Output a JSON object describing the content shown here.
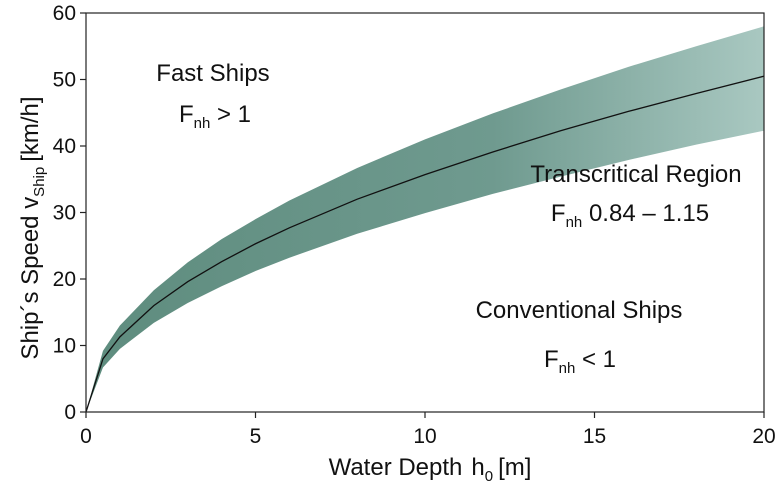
{
  "chart_data": {
    "type": "area",
    "xlabel": "Water Depth",
    "xlabel_symbol": "h",
    "xlabel_sub": "0",
    "xlabel_unit": "[m]",
    "ylabel": "Ship´s Speed v",
    "ylabel_sub": "Ship",
    "ylabel_unit": "[km/h]",
    "xlim": [
      0,
      20
    ],
    "ylim": [
      0,
      60
    ],
    "xticks": [
      0,
      5,
      10,
      15,
      20
    ],
    "yticks": [
      0,
      10,
      20,
      30,
      40,
      50,
      60
    ],
    "grid": false,
    "band": {
      "x": [
        0,
        0.5,
        1,
        2,
        3,
        4,
        5,
        6,
        8,
        10,
        12,
        14,
        16,
        18,
        20
      ],
      "lower": [
        0,
        6.7,
        9.5,
        13.4,
        16.4,
        18.9,
        21.2,
        23.2,
        26.8,
        29.9,
        32.8,
        35.4,
        37.9,
        40.2,
        42.3
      ],
      "upper": [
        0,
        9.2,
        13.0,
        18.3,
        22.5,
        26.0,
        29.0,
        31.8,
        36.7,
        41.0,
        44.9,
        48.5,
        51.9,
        55.0,
        58.0
      ]
    },
    "series": [
      {
        "x": [
          0,
          0.5,
          1,
          2,
          3,
          4,
          5,
          6,
          8,
          10,
          12,
          14,
          16,
          18,
          20
        ],
        "values": [
          0,
          8.0,
          11.3,
          16.0,
          19.6,
          22.6,
          25.3,
          27.7,
          32.0,
          35.7,
          39.1,
          42.3,
          45.2,
          47.9,
          50.5
        ]
      }
    ],
    "annotations": [
      {
        "id": "fast",
        "title": "Fast Ships",
        "symbol": "F",
        "sub": "nh",
        "condition": " > 1"
      },
      {
        "id": "trans",
        "title": "Transcritical Region",
        "symbol": "F",
        "sub": "nh",
        "condition": " 0.84 – 1.15"
      },
      {
        "id": "conv",
        "title": "Conventional Ships",
        "symbol": "F",
        "sub": "nh",
        "condition": " < 1"
      }
    ],
    "colors": {
      "band_left": "#5e8c7e",
      "band_right": "#a9c8c1",
      "line": "#111111",
      "axis": "#222222"
    }
  }
}
